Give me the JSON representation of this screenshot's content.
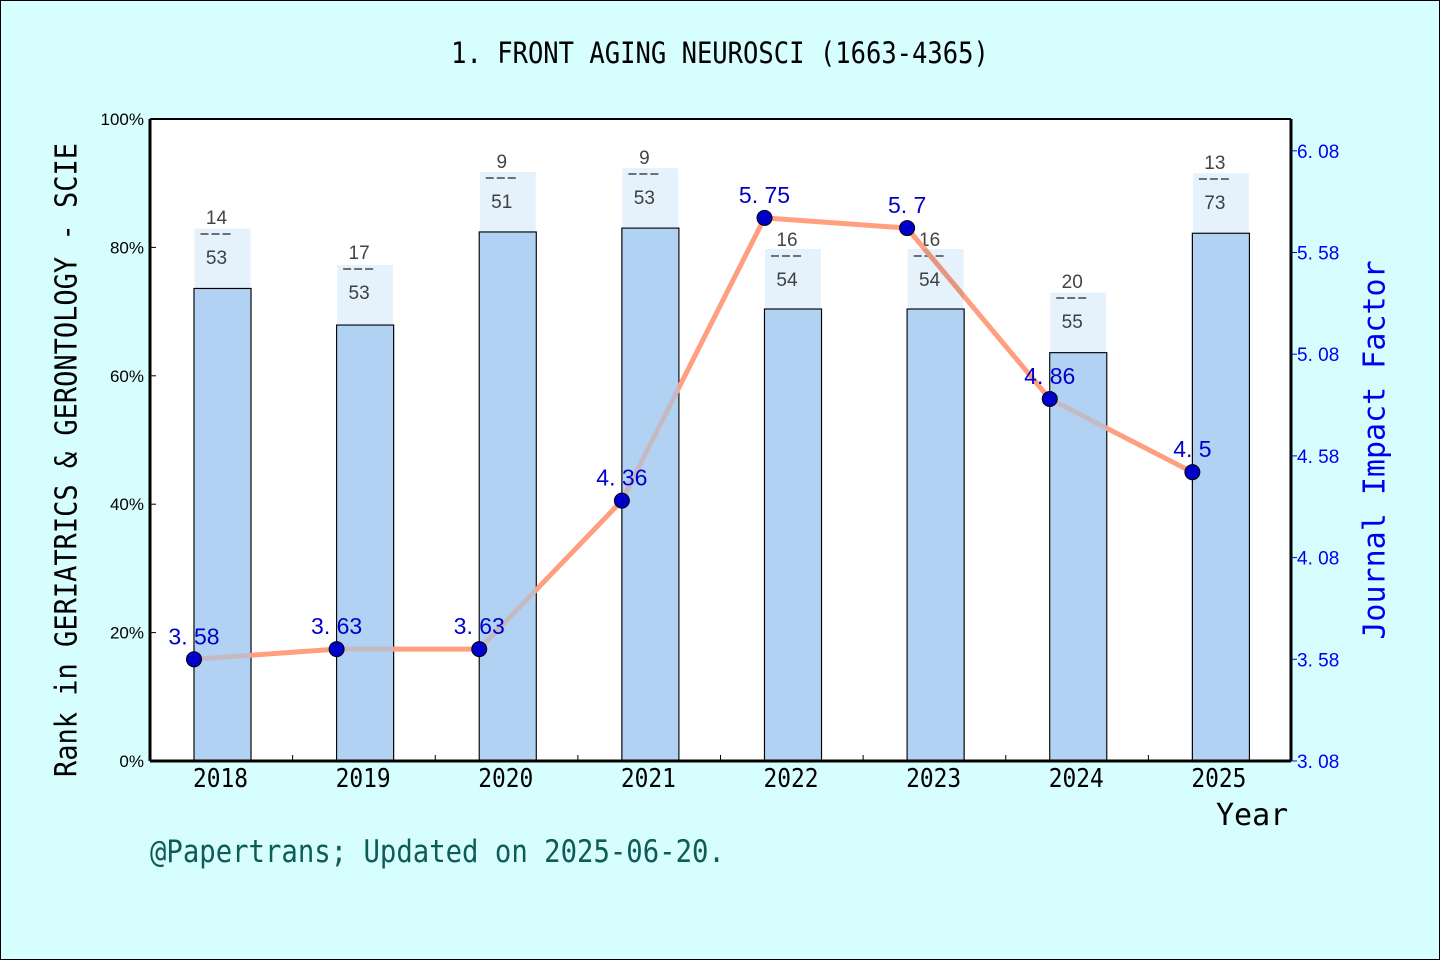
{
  "title": "1. FRONT AGING NEUROSCI (1663-4365)",
  "footer": "@Papertrans; Updated on 2025-06-20.",
  "axes": {
    "x_label": "Year",
    "y_left_label": "Rank in GERIATRICS & GERONTOLOGY - SCIE",
    "y_right_label": "Journal Impact Factor",
    "y_left_ticks": [
      "0%",
      "20%",
      "40%",
      "60%",
      "80%",
      "100%"
    ],
    "y_right_ticks": [
      "3.08",
      "3.58",
      "4.08",
      "4.58",
      "5.08",
      "5.58",
      "6.08"
    ]
  },
  "colors": {
    "background": "#d7fefe",
    "bar_fill": "#c5dff6",
    "line": "#ff9f7f",
    "marker": "#0000cc",
    "if_label": "#0000cc",
    "right_axis": "#0000ee",
    "footer": "#0d5c55"
  },
  "chart_data": {
    "type": "bar+line",
    "title": "1. FRONT AGING NEUROSCI (1663-4365)",
    "xlabel": "Year",
    "ylabel": "Rank in GERIATRICS & GERONTOLOGY - SCIE",
    "ylabel_right": "Journal Impact Factor",
    "categories": [
      "2018",
      "2019",
      "2020",
      "2021",
      "2022",
      "2023",
      "2024",
      "2025"
    ],
    "series": [
      {
        "name": "Rank percentile (bar)",
        "type": "bar",
        "axis": "left",
        "rank": [
          14,
          17,
          9,
          9,
          16,
          16,
          20,
          13
        ],
        "total": [
          53,
          53,
          51,
          53,
          54,
          54,
          55,
          73
        ],
        "rank_labels": [
          "14\n---\n53",
          "17\n---\n53",
          "9\n---\n51",
          "9\n---\n53",
          "16\n---\n54",
          "16\n---\n54",
          "20\n---\n55",
          "13\n---\n73"
        ],
        "values_percent": [
          73.6,
          67.9,
          82.4,
          83.0,
          70.4,
          70.4,
          63.6,
          82.2
        ]
      },
      {
        "name": "Journal Impact Factor (line)",
        "type": "line",
        "axis": "right",
        "values": [
          3.58,
          3.63,
          3.63,
          4.36,
          5.75,
          5.7,
          4.86,
          4.5
        ],
        "labels": [
          "3.58",
          "3.63",
          "3.63",
          "4.36",
          "5.75",
          "5.7",
          "4.86",
          "4.5"
        ]
      }
    ],
    "ylim": [
      0,
      100
    ],
    "ylim_right": [
      3.08,
      6.08
    ],
    "grid": false,
    "legend": "none"
  }
}
